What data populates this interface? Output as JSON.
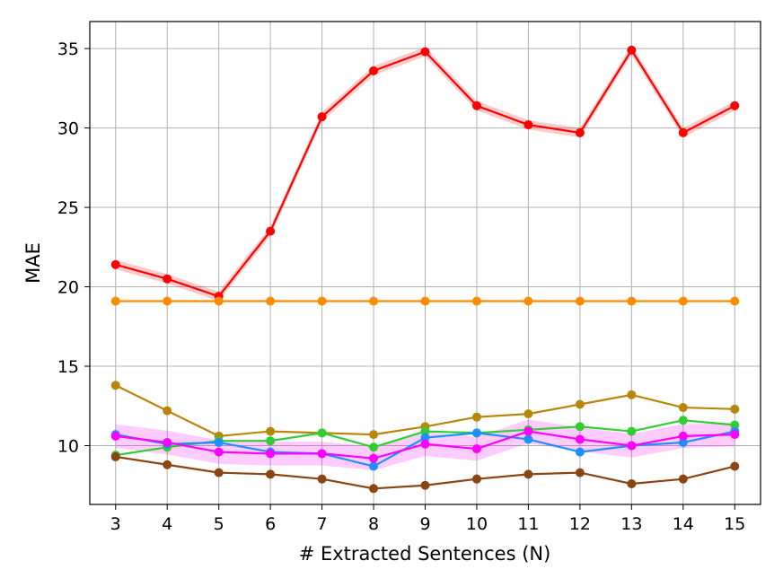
{
  "chart_data": {
    "type": "line",
    "title": "",
    "xlabel": "# Extracted Sentences (N)",
    "ylabel": "MAE",
    "xlim": [
      2.5,
      15.5
    ],
    "ylim": [
      6.3,
      36.7
    ],
    "grid": true,
    "x": [
      3,
      4,
      5,
      6,
      7,
      8,
      9,
      10,
      11,
      12,
      13,
      14,
      15
    ],
    "x_tick_labels": [
      "3",
      "4",
      "5",
      "6",
      "7",
      "8",
      "9",
      "10",
      "11",
      "12",
      "13",
      "14",
      "15"
    ],
    "y_ticks": [
      10,
      15,
      20,
      25,
      30,
      35
    ],
    "y_tick_labels": [
      "10",
      "15",
      "20",
      "25",
      "30",
      "35"
    ],
    "series": [
      {
        "color": "#ff0000",
        "band": 0.3,
        "values": [
          21.4,
          20.5,
          19.4,
          23.5,
          30.7,
          33.6,
          34.8,
          31.4,
          30.2,
          29.7,
          34.9,
          29.7,
          31.4
        ]
      },
      {
        "color": "#ff8c00",
        "band": 0,
        "values": [
          19.1,
          19.1,
          19.1,
          19.1,
          19.1,
          19.1,
          19.1,
          19.1,
          19.1,
          19.1,
          19.1,
          19.1,
          19.1
        ]
      },
      {
        "color": "#b8860b",
        "band": 0,
        "values": [
          13.8,
          12.2,
          10.6,
          10.9,
          10.8,
          10.7,
          11.2,
          11.8,
          12.0,
          12.6,
          13.2,
          12.4,
          12.3
        ]
      },
      {
        "color": "#32cd32",
        "band": 0,
        "values": [
          9.4,
          9.9,
          10.3,
          10.3,
          10.8,
          9.9,
          10.9,
          10.8,
          11.0,
          11.2,
          10.9,
          11.6,
          11.3
        ]
      },
      {
        "color": "#1e90ff",
        "band": 0,
        "values": [
          10.7,
          10.1,
          10.2,
          9.6,
          9.5,
          8.7,
          10.5,
          10.8,
          10.4,
          9.6,
          10.0,
          10.2,
          10.9
        ]
      },
      {
        "color": "#ff00ff",
        "band": 0.75,
        "values": [
          10.6,
          10.2,
          9.6,
          9.5,
          9.5,
          9.2,
          10.1,
          9.8,
          10.9,
          10.4,
          10.0,
          10.6,
          10.7
        ]
      },
      {
        "color": "#8b4513",
        "band": 0,
        "values": [
          9.3,
          8.8,
          8.3,
          8.2,
          7.9,
          7.3,
          7.5,
          7.9,
          8.2,
          8.3,
          7.6,
          7.9,
          8.7
        ]
      }
    ]
  }
}
